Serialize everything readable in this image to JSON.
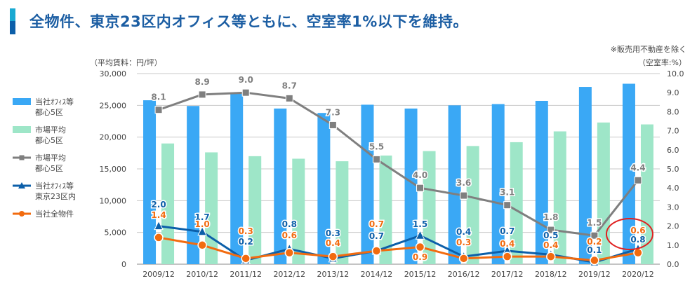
{
  "page_title": "全物件、東京23区内オフィス等ともに、空室率1%以下を維持。",
  "colors": {
    "title": "#1c5ea3",
    "own_office_bar": "#3aa8f5",
    "market_bar": "#9ee6c8",
    "market_vacancy": "#7f7f7f",
    "own_office_23_vacancy": "#0c5fa9",
    "all_properties_vacancy": "#f26b0f",
    "highlight_circle": "#e02020"
  },
  "chart_data": {
    "type": "bar+line",
    "note": "※販売用不動産を除く",
    "ylabel_left": "（平均賃料：円/坪）",
    "ylabel_right": "（空室率:%）",
    "ylim_left": [
      0,
      30000
    ],
    "yticks_left": [
      "0",
      "5,000",
      "10,000",
      "15,000",
      "20,000",
      "25,000",
      "30,000"
    ],
    "ylim_right": [
      0,
      10
    ],
    "yticks_right": [
      "0.0",
      "1.0",
      "2.0",
      "3.0",
      "4.0",
      "5.0",
      "6.0",
      "7.0",
      "8.0",
      "9.0",
      "10.0"
    ],
    "grid": true,
    "legend_position": "left",
    "categories": [
      "2009/12",
      "2010/12",
      "2011/12",
      "2012/12",
      "2013/12",
      "2014/12",
      "2015/12",
      "2016/12",
      "2017/12",
      "2018/12",
      "2019/12",
      "2020/12"
    ],
    "bar_series": [
      {
        "name": [
          "当社ｵﾌｨｽ等",
          "都心5区"
        ],
        "axis": "left",
        "values": [
          25800,
          24900,
          26900,
          24500,
          23800,
          25100,
          24500,
          25000,
          25200,
          25700,
          27900,
          28400
        ]
      },
      {
        "name": [
          "市場平均",
          "都心5区"
        ],
        "axis": "left",
        "values": [
          19000,
          17600,
          17000,
          16600,
          16200,
          17100,
          17800,
          18600,
          19200,
          20900,
          22300,
          22000
        ]
      }
    ],
    "line_series": [
      {
        "name": [
          "市場平均",
          "都心5区"
        ],
        "axis": "right",
        "marker": "square",
        "values": [
          8.1,
          8.9,
          9.0,
          8.7,
          7.3,
          5.5,
          4.0,
          3.6,
          3.1,
          1.8,
          1.5,
          4.4
        ],
        "labels": [
          "8.1",
          "8.9",
          "9.0",
          "8.7",
          "7.3",
          "5.5",
          "4.0",
          "3.6",
          "3.1",
          "1.8",
          "1.5",
          "4.4"
        ]
      },
      {
        "name": [
          "当社ｵﾌｨｽ等",
          "東京23区内"
        ],
        "axis": "right",
        "marker": "triangle",
        "values": [
          2.0,
          1.7,
          0.2,
          0.8,
          0.3,
          0.7,
          1.5,
          0.4,
          0.7,
          0.5,
          0.1,
          0.8
        ],
        "labels": [
          "2.0",
          "1.7",
          "0.2",
          "0.8",
          "0.3",
          "0.7",
          "1.5",
          "0.4",
          "0.7",
          "0.5",
          "0.1",
          "0.8"
        ]
      },
      {
        "name": [
          "当社全物件"
        ],
        "axis": "right",
        "marker": "circle",
        "values": [
          1.4,
          1.0,
          0.3,
          0.6,
          0.4,
          0.7,
          0.9,
          0.3,
          0.4,
          0.4,
          0.2,
          0.6
        ],
        "labels": [
          "1.4",
          "1.0",
          "0.3",
          "0.6",
          "0.4",
          "0.7",
          "0.9",
          "0.3",
          "0.4",
          "0.4",
          "0.2",
          "0.6"
        ]
      }
    ],
    "highlight": "2020/12"
  }
}
